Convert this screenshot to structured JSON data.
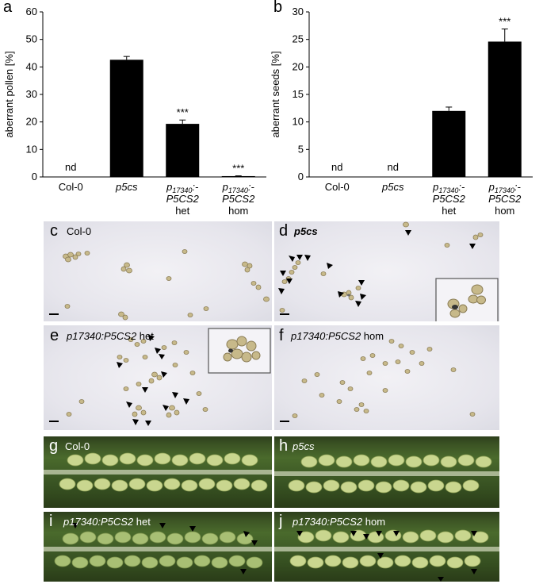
{
  "panels": {
    "a": {
      "letter": "a",
      "chart_data": {
        "type": "bar",
        "ylabel": "aberrant pollen [%]",
        "xlabel": "",
        "ylim": [
          0,
          60
        ],
        "yticks": [
          "0",
          "10",
          "20",
          "30",
          "40",
          "50",
          "60"
        ],
        "categories": [
          {
            "line1": "Col-0",
            "line2": "",
            "line3": ""
          },
          {
            "line1": "p5cs",
            "line2": "",
            "line3": ""
          },
          {
            "line1": "p17340:-",
            "line2": "P5CS2",
            "line3": "het"
          },
          {
            "line1": "p17340:-",
            "line2": "P5CS2",
            "line3": "hom"
          }
        ],
        "values": [
          0,
          42.6,
          19.3,
          0.3
        ],
        "errors": [
          0,
          1.2,
          1.4,
          0.1
        ],
        "labels": [
          "nd",
          "",
          "***",
          "***"
        ]
      }
    },
    "b": {
      "letter": "b",
      "chart_data": {
        "type": "bar",
        "ylabel": "aberrant seeds [%]",
        "xlabel": "",
        "ylim": [
          0,
          30
        ],
        "yticks": [
          "0",
          "5",
          "10",
          "15",
          "20",
          "25",
          "30"
        ],
        "categories": [
          {
            "line1": "Col-0",
            "line2": "",
            "line3": ""
          },
          {
            "line1": "p5cs",
            "line2": "",
            "line3": ""
          },
          {
            "line1": "p17340:-",
            "line2": "P5CS2",
            "line3": "het"
          },
          {
            "line1": "p17340:-",
            "line2": "P5CS2",
            "line3": "hom"
          }
        ],
        "values": [
          0,
          0,
          12.0,
          24.6
        ],
        "errors": [
          0,
          0,
          0.7,
          2.3
        ],
        "labels": [
          "nd",
          "nd",
          "",
          "***"
        ]
      }
    },
    "c": {
      "letter": "c",
      "label": "Col-0"
    },
    "d": {
      "letter": "d",
      "label": "p5cs"
    },
    "e": {
      "letter": "e",
      "label_pre": "p17340:P5CS2",
      "label_post": " het"
    },
    "f": {
      "letter": "f",
      "label_pre": "p17340:P5CS2",
      "label_post": " hom"
    },
    "g": {
      "letter": "g",
      "label": "Col-0"
    },
    "h": {
      "letter": "h",
      "label": "p5cs"
    },
    "i": {
      "letter": "i",
      "label_pre": "p17340:P5CS2",
      "label_post": " het"
    },
    "j": {
      "letter": "j",
      "label_pre": "p17340:P5CS2",
      "label_post": " hom"
    }
  }
}
